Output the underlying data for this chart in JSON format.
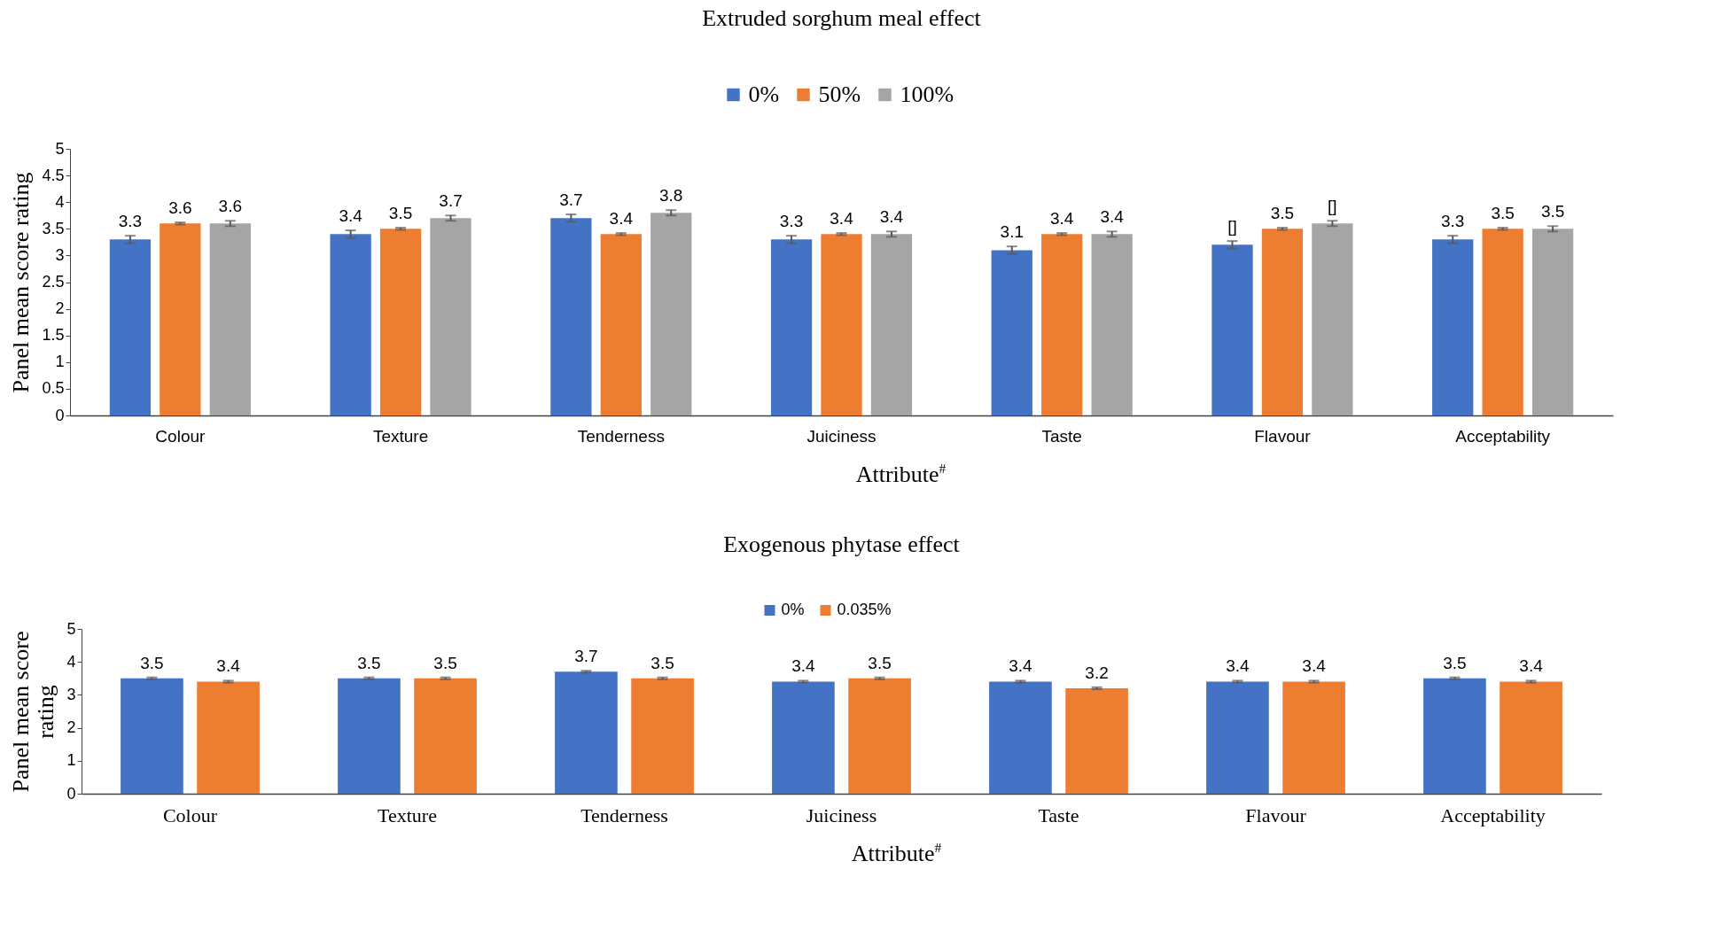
{
  "chart_data": [
    {
      "type": "bar",
      "title": "Extruded sorghum meal effect",
      "xlabel": "Attribute$^{#}$",
      "ylabel": "Panel mean score rating",
      "categories": [
        "Colour",
        "Texture",
        "Tenderness",
        "Juiciness",
        "Taste",
        "Flavour",
        "Acceptability"
      ],
      "ylim": [
        0,
        5
      ],
      "yticks": [
        0,
        0.5,
        1,
        1.5,
        2,
        2.5,
        3,
        3.5,
        4,
        4.5,
        5
      ],
      "grid": false,
      "legend": "top",
      "series": [
        {
          "name": "0%",
          "color": "#4472c4",
          "values": [
            3.3,
            3.4,
            3.7,
            3.3,
            3.1,
            3.2,
            3.3
          ],
          "errors": [
            0.07,
            0.07,
            0.07,
            0.07,
            0.07,
            0.07,
            0.07
          ],
          "value_labels": [
            "3.3",
            "3.4",
            "3.7",
            "3.3",
            "3.1",
            "[]",
            "3.3"
          ]
        },
        {
          "name": "50%",
          "color": "#ed7d31",
          "values": [
            3.6,
            3.5,
            3.4,
            3.4,
            3.4,
            3.5,
            3.5
          ],
          "errors": [
            0.02,
            0.02,
            0.02,
            0.02,
            0.02,
            0.02,
            0.02
          ],
          "value_labels": [
            "3.6",
            "3.5",
            "3.4",
            "3.4",
            "3.4",
            "3.5",
            "3.5"
          ]
        },
        {
          "name": "100%",
          "color": "#a5a5a5",
          "values": [
            3.6,
            3.7,
            3.8,
            3.4,
            3.4,
            3.6,
            3.5
          ],
          "errors": [
            0.05,
            0.05,
            0.05,
            0.05,
            0.05,
            0.05,
            0.05
          ],
          "value_labels": [
            "3.6",
            "3.7",
            "3.8",
            "3.4",
            "3.4",
            "[]",
            "3.5"
          ]
        }
      ]
    },
    {
      "type": "bar",
      "title": "Exogenous phytase effect",
      "xlabel": "Attribute$^{#}$",
      "ylabel": "Panel mean score rating",
      "categories": [
        "Colour",
        "Texture",
        "Tenderness",
        "Juiciness",
        "Taste",
        "Flavour",
        "Acceptability"
      ],
      "ylim": [
        0,
        5
      ],
      "yticks": [
        0,
        1,
        2,
        3,
        4,
        5
      ],
      "grid": false,
      "legend": "top",
      "data_labels": true,
      "series": [
        {
          "name": "0%",
          "color": "#4472c4",
          "values": [
            3.5,
            3.5,
            3.7,
            3.4,
            3.4,
            3.4,
            3.5
          ],
          "errors": [
            0.03,
            0.03,
            0.03,
            0.03,
            0.03,
            0.03,
            0.03
          ]
        },
        {
          "name": "0.035%",
          "color": "#ed7d31",
          "values": [
            3.4,
            3.5,
            3.5,
            3.5,
            3.2,
            3.4,
            3.4
          ],
          "errors": [
            0.03,
            0.03,
            0.03,
            0.03,
            0.03,
            0.03,
            0.03
          ]
        }
      ]
    }
  ]
}
